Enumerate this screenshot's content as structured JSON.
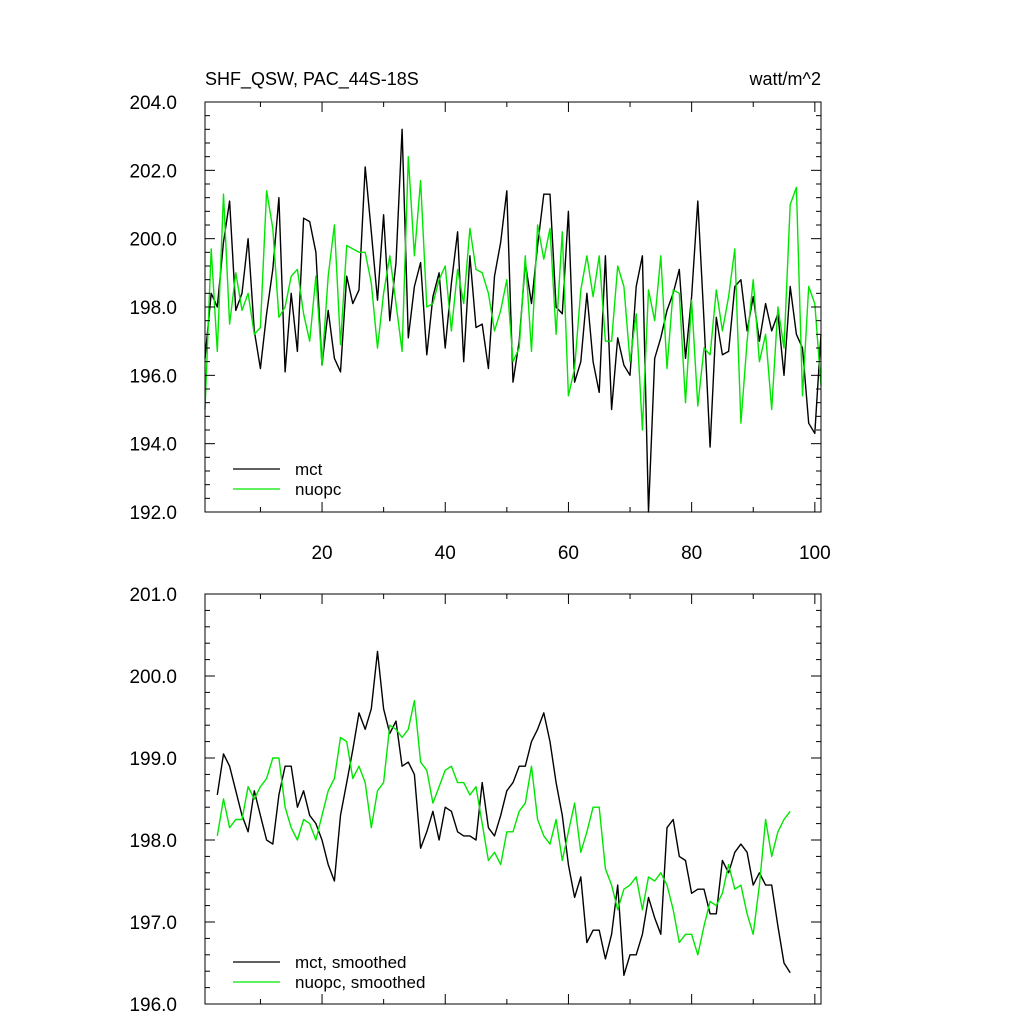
{
  "chart_data": [
    {
      "type": "line",
      "title": "SHF_QSW, PAC_44S-18S",
      "units": "watt/m^2",
      "xlim": [
        1,
        101
      ],
      "ylim": [
        192.0,
        204.0
      ],
      "x_ticks": [
        20,
        40,
        60,
        80,
        100
      ],
      "y_ticks": [
        "192.0",
        "194.0",
        "196.0",
        "198.0",
        "200.0",
        "202.0",
        "204.0"
      ],
      "legend": "bottom-left",
      "series": [
        {
          "name": "mct",
          "color": "#000000",
          "x_start": 1,
          "values": [
            196.5,
            198.4,
            198.0,
            199.9,
            201.1,
            197.9,
            198.4,
            200.0,
            197.3,
            196.2,
            197.8,
            199.1,
            201.2,
            196.1,
            198.4,
            196.7,
            200.6,
            200.5,
            199.6,
            196.3,
            197.9,
            196.5,
            196.1,
            198.9,
            198.1,
            198.5,
            202.1,
            200.2,
            198.2,
            200.7,
            197.6,
            199.3,
            203.2,
            197.1,
            198.6,
            199.3,
            196.6,
            198.3,
            199.0,
            196.8,
            198.7,
            200.2,
            196.4,
            199.5,
            197.4,
            197.5,
            196.2,
            198.9,
            199.9,
            201.4,
            195.8,
            197.0,
            199.3,
            198.1,
            199.8,
            201.3,
            201.3,
            198.0,
            197.8,
            200.8,
            195.8,
            196.4,
            198.4,
            196.4,
            195.5,
            199.5,
            195.0,
            197.1,
            196.3,
            196.0,
            198.6,
            199.5,
            192.0,
            196.5,
            197.1,
            197.9,
            198.4,
            199.1,
            196.5,
            198.3,
            201.1,
            197.6,
            193.9,
            197.7,
            196.6,
            196.7,
            198.6,
            198.8,
            197.3,
            198.3,
            197.0,
            198.1,
            197.3,
            197.8,
            196.0,
            198.6,
            197.2,
            196.8,
            194.6,
            194.3,
            197.2
          ]
        },
        {
          "name": "nuopc",
          "color": "#00e600",
          "x_start": 1,
          "values": [
            195.0,
            199.7,
            196.7,
            201.3,
            197.5,
            199.0,
            197.9,
            198.4,
            197.2,
            197.4,
            201.4,
            200.3,
            197.7,
            198.0,
            198.9,
            199.1,
            197.8,
            197.0,
            198.9,
            196.3,
            198.9,
            200.4,
            196.9,
            199.8,
            199.7,
            199.6,
            199.6,
            198.7,
            196.8,
            198.4,
            199.5,
            198.1,
            196.7,
            202.4,
            199.5,
            201.7,
            198.0,
            198.1,
            198.8,
            199.2,
            197.3,
            199.1,
            198.1,
            200.3,
            199.1,
            199.0,
            198.4,
            197.3,
            197.9,
            198.8,
            196.4,
            196.8,
            199.5,
            196.7,
            200.4,
            199.4,
            200.3,
            197.2,
            200.2,
            195.4,
            196.2,
            198.5,
            199.5,
            198.3,
            199.5,
            197.0,
            197.0,
            199.2,
            198.6,
            196.4,
            197.8,
            194.4,
            198.5,
            197.6,
            199.5,
            196.2,
            198.5,
            198.4,
            195.2,
            198.2,
            195.1,
            196.8,
            196.6,
            198.5,
            197.3,
            198.3,
            199.7,
            194.6,
            197.0,
            198.8,
            196.4,
            197.2,
            195.0,
            198.0,
            196.8,
            201.0,
            201.5,
            195.4,
            198.6,
            198.1,
            195.7
          ]
        }
      ]
    },
    {
      "type": "line",
      "xlim": [
        1,
        101
      ],
      "ylim": [
        196.0,
        201.0
      ],
      "y_ticks": [
        "196.0",
        "197.0",
        "198.0",
        "199.0",
        "200.0",
        "201.0"
      ],
      "legend": "bottom-left",
      "series": [
        {
          "name": "mct, smoothed",
          "color": "#000000",
          "x_start": 3,
          "values": [
            198.55,
            199.05,
            198.9,
            198.6,
            198.3,
            198.1,
            198.6,
            198.3,
            198.0,
            197.95,
            198.55,
            198.9,
            198.9,
            198.4,
            198.6,
            198.3,
            198.2,
            198.0,
            197.7,
            197.5,
            198.3,
            198.7,
            199.1,
            199.55,
            199.35,
            199.6,
            200.3,
            199.6,
            199.3,
            199.45,
            198.9,
            198.95,
            198.8,
            197.9,
            198.1,
            198.35,
            198.0,
            198.4,
            198.35,
            198.1,
            198.05,
            198.05,
            198.0,
            198.7,
            198.15,
            198.05,
            198.3,
            198.6,
            198.7,
            198.9,
            198.9,
            199.2,
            199.35,
            199.55,
            199.2,
            198.7,
            198.3,
            197.7,
            197.3,
            197.55,
            196.75,
            196.9,
            196.9,
            196.55,
            196.85,
            197.45,
            196.35,
            196.6,
            196.6,
            196.85,
            197.3,
            197.05,
            196.85,
            198.15,
            198.25,
            197.8,
            197.75,
            197.35,
            197.4,
            197.4,
            197.1,
            197.1,
            197.75,
            197.6,
            197.85,
            197.95,
            197.85,
            197.45,
            197.6,
            197.45,
            197.45,
            196.95,
            196.5,
            196.38
          ]
        },
        {
          "name": "nuopc, smoothed",
          "color": "#00e600",
          "x_start": 3,
          "values": [
            198.05,
            198.5,
            198.15,
            198.25,
            198.25,
            198.65,
            198.5,
            198.65,
            198.75,
            199.0,
            199.0,
            198.4,
            198.15,
            198.0,
            198.25,
            198.2,
            198.0,
            198.3,
            198.6,
            198.75,
            199.25,
            199.2,
            198.75,
            198.9,
            198.7,
            198.15,
            198.6,
            198.7,
            199.4,
            199.35,
            199.25,
            199.35,
            199.7,
            198.95,
            198.85,
            198.45,
            198.65,
            198.85,
            198.9,
            198.7,
            198.7,
            198.55,
            198.65,
            198.2,
            197.75,
            197.85,
            197.7,
            198.1,
            198.1,
            198.35,
            198.45,
            198.9,
            198.25,
            198.05,
            197.95,
            198.25,
            197.75,
            198.1,
            198.45,
            197.85,
            198.1,
            198.4,
            198.4,
            197.65,
            197.45,
            197.15,
            197.4,
            197.45,
            197.55,
            197.15,
            197.55,
            197.5,
            197.6,
            197.45,
            197.15,
            196.75,
            196.85,
            196.85,
            196.6,
            196.95,
            197.25,
            197.2,
            197.35,
            197.7,
            197.4,
            197.45,
            197.1,
            196.85,
            197.45,
            198.25,
            197.8,
            198.1,
            198.25,
            198.35
          ]
        }
      ]
    }
  ]
}
